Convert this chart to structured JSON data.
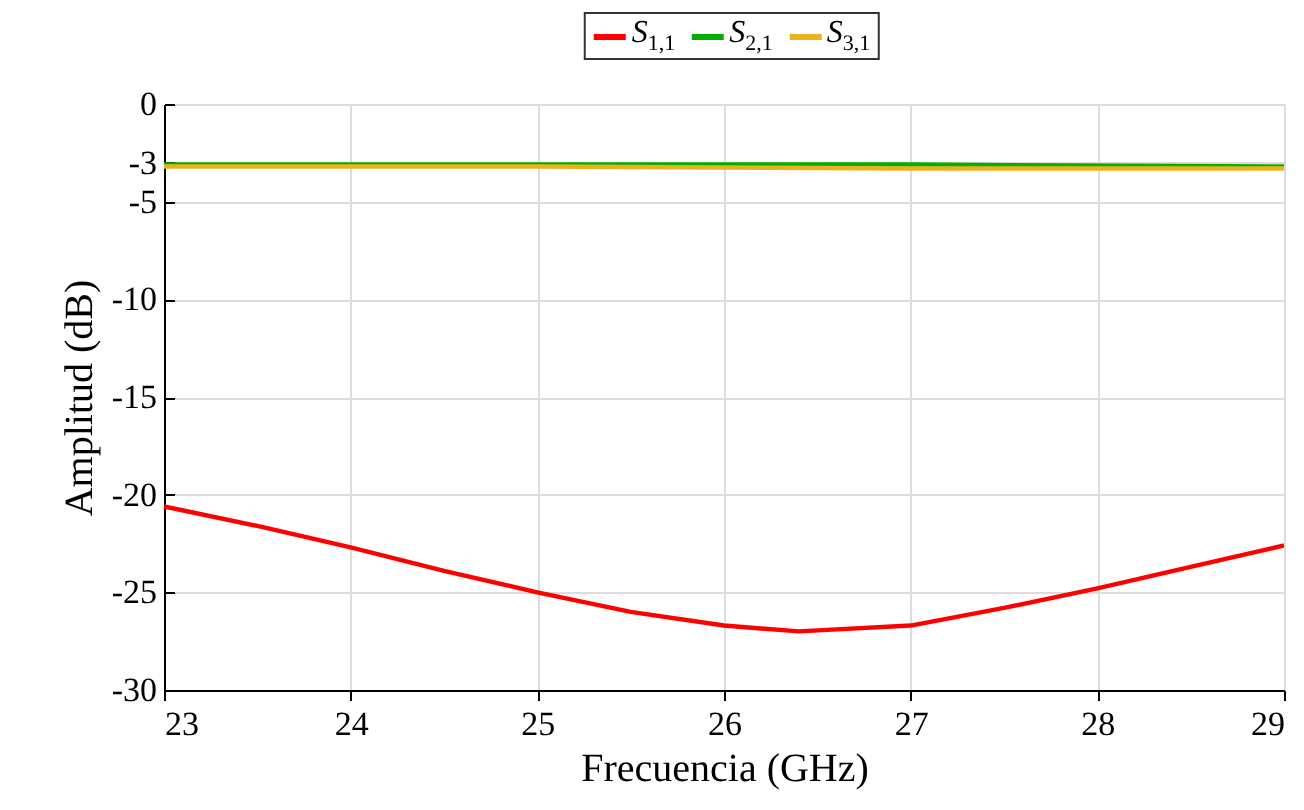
{
  "chart_data": {
    "type": "line",
    "xlabel": "Frecuencia (GHz)",
    "ylabel": "Amplitud (dB)",
    "xlim": [
      23,
      29
    ],
    "xticks": [
      23,
      24,
      25,
      26,
      27,
      28,
      29
    ],
    "ylim": [
      -30,
      0
    ],
    "yticks": [
      0,
      -3,
      -5,
      -10,
      -15,
      -20,
      -25,
      -30
    ],
    "grid": true,
    "legend": "top",
    "line_style": "solid",
    "series": [
      {
        "name": "S$_{1,1}$",
        "color": "#ff0000",
        "x": [
          23,
          23.5,
          24,
          24.5,
          25,
          25.5,
          26,
          26.4,
          27,
          27.5,
          28,
          28.5,
          29
        ],
        "values": [
          -20.6,
          -21.6,
          -22.7,
          -23.9,
          -25.0,
          -26.0,
          -26.7,
          -27.0,
          -26.7,
          -25.8,
          -24.8,
          -23.7,
          -22.6
        ]
      },
      {
        "name": "S$_{2,1}$",
        "color": "#00b000",
        "x": [
          23,
          25,
          27,
          29
        ],
        "values": [
          -3.1,
          -3.1,
          -3.1,
          -3.2
        ]
      },
      {
        "name": "S$_{3,1}$",
        "color": "#edb120",
        "x": [
          23,
          25,
          27,
          29
        ],
        "values": [
          -3.2,
          -3.2,
          -3.3,
          -3.3
        ]
      }
    ]
  }
}
